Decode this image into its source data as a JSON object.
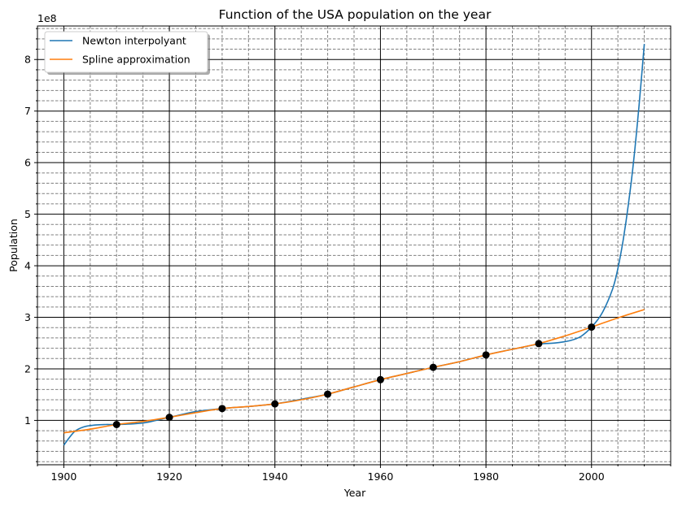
{
  "chart_data": {
    "type": "line",
    "title": "Function of the USA population on the year",
    "xlabel": "Year",
    "ylabel": "Population",
    "y_offset_label": "1e8",
    "xlim": [
      1895,
      2015
    ],
    "ylim": [
      0.14,
      8.65
    ],
    "y_scale_factor": 100000000,
    "x_ticks": [
      1900,
      1920,
      1940,
      1960,
      1980,
      2000
    ],
    "x_tick_labels": [
      "1900",
      "1920",
      "1940",
      "1960",
      "1980",
      "2000"
    ],
    "y_ticks": [
      1,
      2,
      3,
      4,
      5,
      6,
      7,
      8
    ],
    "y_tick_labels": [
      "1",
      "2",
      "3",
      "4",
      "5",
      "6",
      "7",
      "8"
    ],
    "grid": "major solid black, minor dashed gray",
    "legend_position": "top-left",
    "series": [
      {
        "name": "Newton interpolyant",
        "color": "#1f77b4",
        "x": [
          1900,
          1902,
          1904,
          1906,
          1908,
          1910,
          1915,
          1920,
          1925,
          1930,
          1935,
          1940,
          1945,
          1950,
          1955,
          1960,
          1965,
          1970,
          1975,
          1980,
          1985,
          1990,
          1993,
          1996,
          1998,
          2000,
          2002,
          2004,
          2005,
          2006,
          2007,
          2008,
          2009,
          2010
        ],
        "y": [
          0.52,
          0.78,
          0.88,
          0.91,
          0.92,
          0.92,
          0.95,
          1.06,
          1.17,
          1.23,
          1.27,
          1.32,
          1.41,
          1.51,
          1.65,
          1.79,
          1.91,
          2.03,
          2.14,
          2.27,
          2.38,
          2.48,
          2.5,
          2.55,
          2.63,
          2.81,
          3.08,
          3.55,
          3.95,
          4.5,
          5.2,
          6.05,
          7.1,
          8.3
        ]
      },
      {
        "name": "Spline approximation",
        "color": "#ff7f0e",
        "x": [
          1900,
          1905,
          1910,
          1915,
          1920,
          1925,
          1930,
          1935,
          1940,
          1945,
          1950,
          1955,
          1960,
          1965,
          1970,
          1975,
          1980,
          1985,
          1990,
          1995,
          2000,
          2005,
          2010
        ],
        "y": [
          0.76,
          0.83,
          0.92,
          0.98,
          1.06,
          1.15,
          1.23,
          1.27,
          1.32,
          1.4,
          1.51,
          1.65,
          1.79,
          1.91,
          2.03,
          2.14,
          2.27,
          2.38,
          2.49,
          2.64,
          2.81,
          2.99,
          3.15
        ]
      }
    ],
    "points": {
      "color": "#000000",
      "x": [
        1910,
        1920,
        1930,
        1940,
        1950,
        1960,
        1970,
        1980,
        1990,
        2000
      ],
      "y": [
        0.92,
        1.06,
        1.23,
        1.32,
        1.51,
        1.79,
        2.03,
        2.27,
        2.49,
        2.81
      ]
    }
  }
}
